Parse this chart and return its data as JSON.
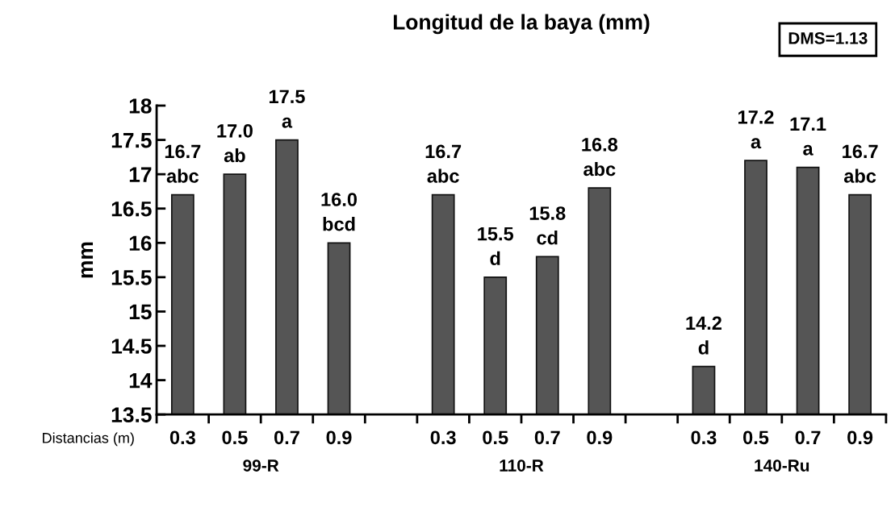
{
  "chart_data": {
    "type": "bar",
    "title": "Longitud de la baya (mm)",
    "ylabel": "mm",
    "xlabel": "Distancias (m)",
    "categories": [
      "0.3",
      "0.5",
      "0.7",
      "0.9",
      null,
      "0.3",
      "0.5",
      "0.7",
      "0.9",
      null,
      "0.3",
      "0.5",
      "0.7",
      "0.9"
    ],
    "values": [
      16.7,
      17.0,
      17.5,
      16.0,
      null,
      16.7,
      15.5,
      15.8,
      16.8,
      null,
      14.2,
      17.2,
      17.1,
      16.7
    ],
    "value_labels": [
      "16.7\nabc",
      "17.0\nab",
      "17.5\na",
      "16.0\nbcd",
      null,
      "16.7\nabc",
      "15.5\nd",
      "15.8\ncd",
      "16.8\nabc",
      null,
      "14.2\nd",
      "17.2\na",
      "17.1\na",
      "16.7\nabc"
    ],
    "color": "#555555",
    "ylim": [
      13.5,
      18
    ],
    "yticks": [
      13.5,
      14,
      14.5,
      15,
      15.5,
      16,
      16.5,
      17,
      17.5,
      18
    ],
    "grid": false,
    "annotations": [
      "99-R",
      "110-R",
      "140-Ru",
      "DMS=1.13"
    ]
  }
}
